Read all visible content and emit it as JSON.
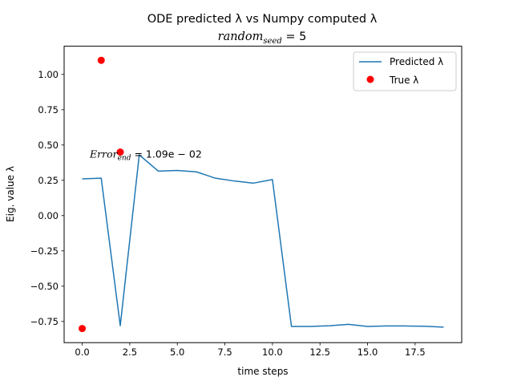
{
  "chart_data": {
    "type": "line",
    "title": "ODE predicted λ vs Numpy computed λ",
    "subtitle": {
      "main": "random",
      "subscript": "seed",
      "suffix": " = 5"
    },
    "xlabel": "time steps",
    "ylabel": "Eig. value λ",
    "xlim": [
      -0.95,
      19.95
    ],
    "ylim": [
      -0.9,
      1.2
    ],
    "xticks": [
      0.0,
      2.5,
      5.0,
      7.5,
      10.0,
      12.5,
      15.0,
      17.5
    ],
    "xtick_labels": [
      "0.0",
      "2.5",
      "5.0",
      "7.5",
      "10.0",
      "12.5",
      "15.0",
      "17.5"
    ],
    "yticks": [
      -0.75,
      -0.5,
      -0.25,
      0.0,
      0.25,
      0.5,
      0.75,
      1.0
    ],
    "ytick_labels": [
      "−0.75",
      "−0.50",
      "−0.25",
      "0.00",
      "0.25",
      "0.50",
      "0.75",
      "1.00"
    ],
    "grid": false,
    "legend_position": "top-right",
    "series": [
      {
        "name": "Predicted λ",
        "kind": "line",
        "color": "#1f77b4",
        "x": [
          0,
          1,
          2,
          3,
          4,
          5,
          6,
          7,
          8,
          9,
          10,
          11,
          12,
          13,
          14,
          15,
          16,
          17,
          18,
          19
        ],
        "y": [
          0.26,
          0.265,
          -0.78,
          0.43,
          0.315,
          0.32,
          0.31,
          0.265,
          0.245,
          0.23,
          0.255,
          -0.785,
          -0.785,
          -0.78,
          -0.77,
          -0.785,
          -0.782,
          -0.782,
          -0.784,
          -0.79
        ]
      },
      {
        "name": "True λ",
        "kind": "scatter",
        "color": "#ff0000",
        "x": [
          0,
          1,
          2
        ],
        "y": [
          -0.8,
          1.1,
          0.45
        ]
      }
    ],
    "annotation": {
      "main": "Error",
      "subscript": "end",
      "suffix": " = 1.09e − 02",
      "x": 0.4,
      "y": 0.41
    }
  }
}
